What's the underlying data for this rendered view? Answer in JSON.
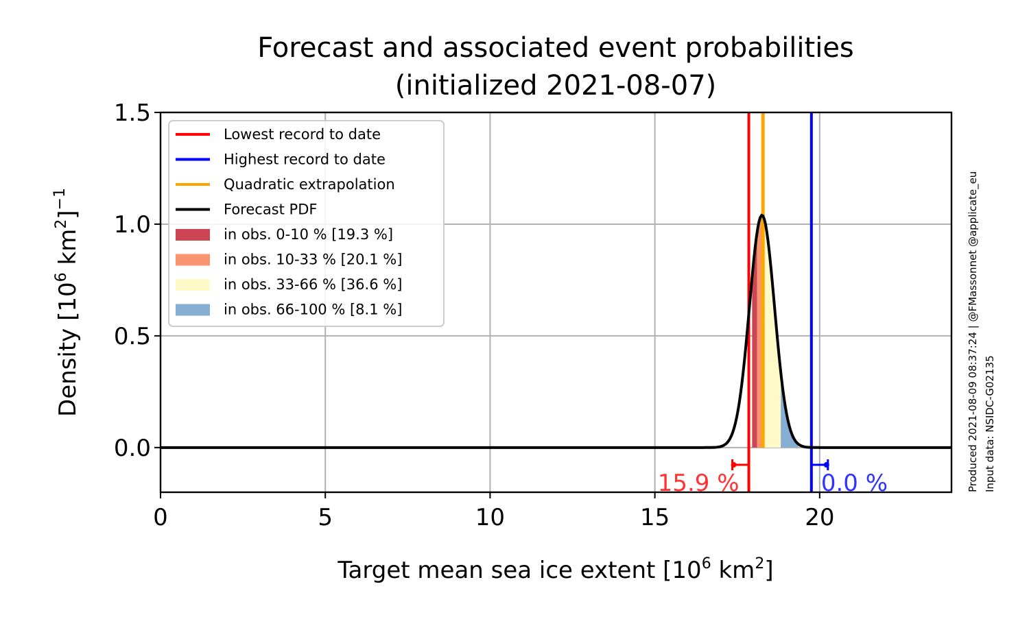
{
  "chart_data": {
    "type": "line",
    "title": "Forecast and associated event probabilities",
    "subtitle": "(initialized 2021-08-07)",
    "xlabel": "Target mean sea ice extent [10",
    "xlabel_sup": "6",
    "xlabel_unit": " km",
    "xlabel_unit_sup": "2",
    "xlabel_end": "]",
    "ylabel": "Density [10",
    "ylabel_sup": "6",
    "ylabel_unit": " km",
    "ylabel_unit_sup": "2",
    "ylabel_end": "]",
    "ylabel_exp": "−1",
    "xlim": [
      0,
      24
    ],
    "ylim": [
      -0.2,
      1.5
    ],
    "x_ticks": [
      "0",
      "5",
      "10",
      "15",
      "20"
    ],
    "y_ticks": [
      "0.0",
      "0.5",
      "1.0",
      "1.5"
    ],
    "grid": true,
    "legend_position": "upper-left",
    "pdf": {
      "mean": 18.25,
      "sd": 0.38,
      "peak": 1.04,
      "x_range": [
        0,
        24
      ]
    },
    "lowest_record": 17.85,
    "highest_record": 19.75,
    "quadratic_extrapolation": 18.28,
    "terciles": [
      {
        "from": 17.95,
        "to": 18.1,
        "color": "#cc4552"
      },
      {
        "from": 18.1,
        "to": 18.33,
        "color": "#fa9470"
      },
      {
        "from": 18.33,
        "to": 18.82,
        "color": "#fffac8"
      },
      {
        "from": 18.82,
        "to": 19.35,
        "color": "#86aed3"
      }
    ],
    "prob_below_lowest": "15.9 %",
    "prob_above_highest": "0.0 %",
    "legend": [
      {
        "label": "Lowest record to date",
        "kind": "line",
        "color": "#ff0000"
      },
      {
        "label": "Highest record to date",
        "kind": "line",
        "color": "#0000ff"
      },
      {
        "label": "Quadratic extrapolation",
        "kind": "line",
        "color": "#ffa500"
      },
      {
        "label": "Forecast PDF",
        "kind": "line",
        "color": "#000000"
      },
      {
        "label": "in obs. 0-10 % [19.3 %]",
        "kind": "patch",
        "color": "#cc4552"
      },
      {
        "label": "in obs. 10-33 % [20.1 %]",
        "kind": "patch",
        "color": "#fa9470"
      },
      {
        "label": "in obs. 33-66 % [36.6 %]",
        "kind": "patch",
        "color": "#fffac8"
      },
      {
        "label": "in obs. 66-100 % [8.1 %]",
        "kind": "patch",
        "color": "#86aed3"
      }
    ],
    "side_note_1": "Produced 2021-08-09 08:37:24 | @FMassonnet @applicate_eu",
    "side_note_2": "Input data: NSIDC-G02135"
  }
}
